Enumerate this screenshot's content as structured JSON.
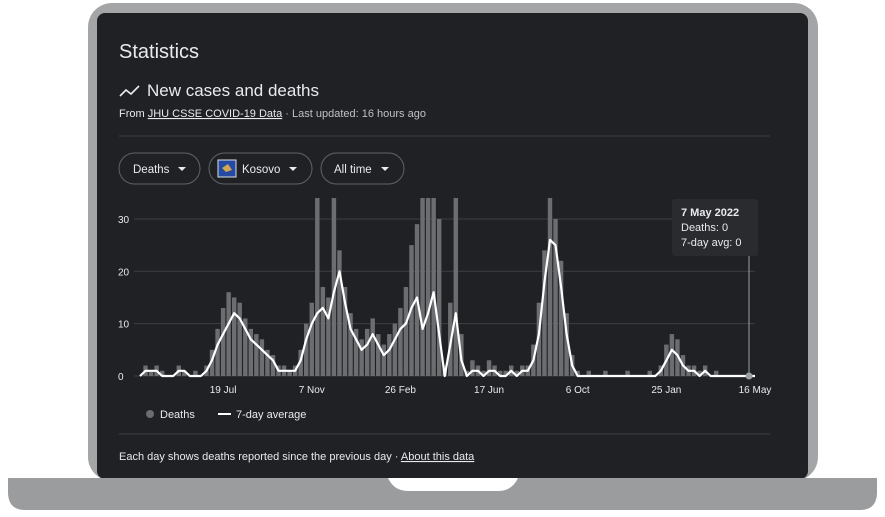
{
  "header": {
    "title": "Statistics",
    "subtitle": "New cases and deaths",
    "source_prefix": "From",
    "source_link": "JHU CSSE COVID-19 Data",
    "updated": "· Last updated: 16 hours ago"
  },
  "filters": [
    "Deaths",
    "Kosovo",
    "All time"
  ],
  "tooltip": {
    "title": "7 May 2022",
    "lines": [
      "Deaths: 0",
      "7-day avg: 0"
    ]
  },
  "footer": {
    "note": "Each day shows deaths reported since the previous day",
    "separator": "·",
    "link": "About this data"
  },
  "chart_data": {
    "type": "bar-line",
    "categories": [
      null,
      null,
      null,
      null,
      null,
      null,
      null,
      null,
      null,
      null,
      null,
      null,
      null,
      null,
      null,
      "19 Jul",
      null,
      null,
      null,
      null,
      null,
      null,
      null,
      null,
      null,
      null,
      null,
      null,
      null,
      null,
      null,
      "7 Nov",
      null,
      null,
      null,
      null,
      null,
      null,
      null,
      null,
      null,
      null,
      null,
      null,
      null,
      null,
      null,
      "26 Feb",
      null,
      null,
      null,
      null,
      null,
      null,
      null,
      null,
      null,
      null,
      null,
      null,
      null,
      null,
      null,
      "17 Jun",
      null,
      null,
      null,
      null,
      null,
      null,
      null,
      null,
      null,
      null,
      null,
      null,
      null,
      null,
      null,
      "6 Oct",
      null,
      null,
      null,
      null,
      null,
      null,
      null,
      null,
      null,
      null,
      null,
      null,
      null,
      null,
      null,
      "25 Jan",
      null,
      null,
      null,
      null,
      null,
      null,
      null,
      null,
      null,
      null,
      null,
      null,
      null,
      null,
      null,
      "16 May"
    ],
    "series": [
      {
        "name": "Deaths",
        "color": "#6b6d70",
        "values": [
          0,
          2,
          1,
          2,
          1,
          0,
          0,
          2,
          1,
          0,
          1,
          0,
          2,
          5,
          9,
          13,
          16,
          15,
          14,
          11,
          9,
          8,
          7,
          5,
          4,
          2,
          2,
          1,
          2,
          5,
          10,
          14,
          34,
          17,
          15,
          34,
          24,
          17,
          12,
          9,
          7,
          9,
          11,
          8,
          6,
          8,
          10,
          13,
          17,
          25,
          29,
          34,
          34,
          34,
          30,
          2,
          14,
          34,
          8,
          1,
          3,
          2,
          1,
          3,
          2,
          1,
          1,
          2,
          1,
          2,
          2,
          6,
          14,
          24,
          34,
          30,
          22,
          12,
          4,
          1,
          0,
          1,
          0,
          0,
          1,
          0,
          0,
          0,
          1,
          0,
          0,
          0,
          1,
          0,
          2,
          6,
          8,
          7,
          4,
          2,
          2,
          1,
          2,
          0,
          1,
          0,
          0,
          0,
          0,
          0,
          0,
          0
        ]
      },
      {
        "name": "7-day average",
        "color": "#ffffff",
        "values": [
          0,
          1,
          1,
          1,
          0,
          0,
          0,
          1,
          1,
          0,
          0,
          0,
          1,
          3,
          6,
          8,
          10,
          12,
          11,
          9,
          7,
          6,
          5,
          4,
          3,
          1,
          1,
          1,
          1,
          3,
          7,
          10,
          12,
          13,
          11,
          16,
          20,
          14,
          9,
          7,
          5,
          6,
          8,
          6,
          4,
          5,
          7,
          9,
          10,
          13,
          15,
          9,
          12,
          16,
          8,
          0,
          6,
          12,
          3,
          0,
          1,
          1,
          0,
          1,
          1,
          0,
          0,
          1,
          0,
          1,
          1,
          3,
          8,
          18,
          26,
          25,
          17,
          8,
          2,
          0,
          0,
          0,
          0,
          0,
          0,
          0,
          0,
          0,
          0,
          0,
          0,
          0,
          0,
          0,
          1,
          3,
          5,
          4,
          2,
          1,
          1,
          0,
          1,
          0,
          0,
          0,
          0,
          0,
          0,
          0,
          0,
          0
        ]
      }
    ],
    "ylim": [
      0,
      34
    ],
    "yticks": [
      0,
      10,
      20,
      30
    ],
    "grid": true
  }
}
